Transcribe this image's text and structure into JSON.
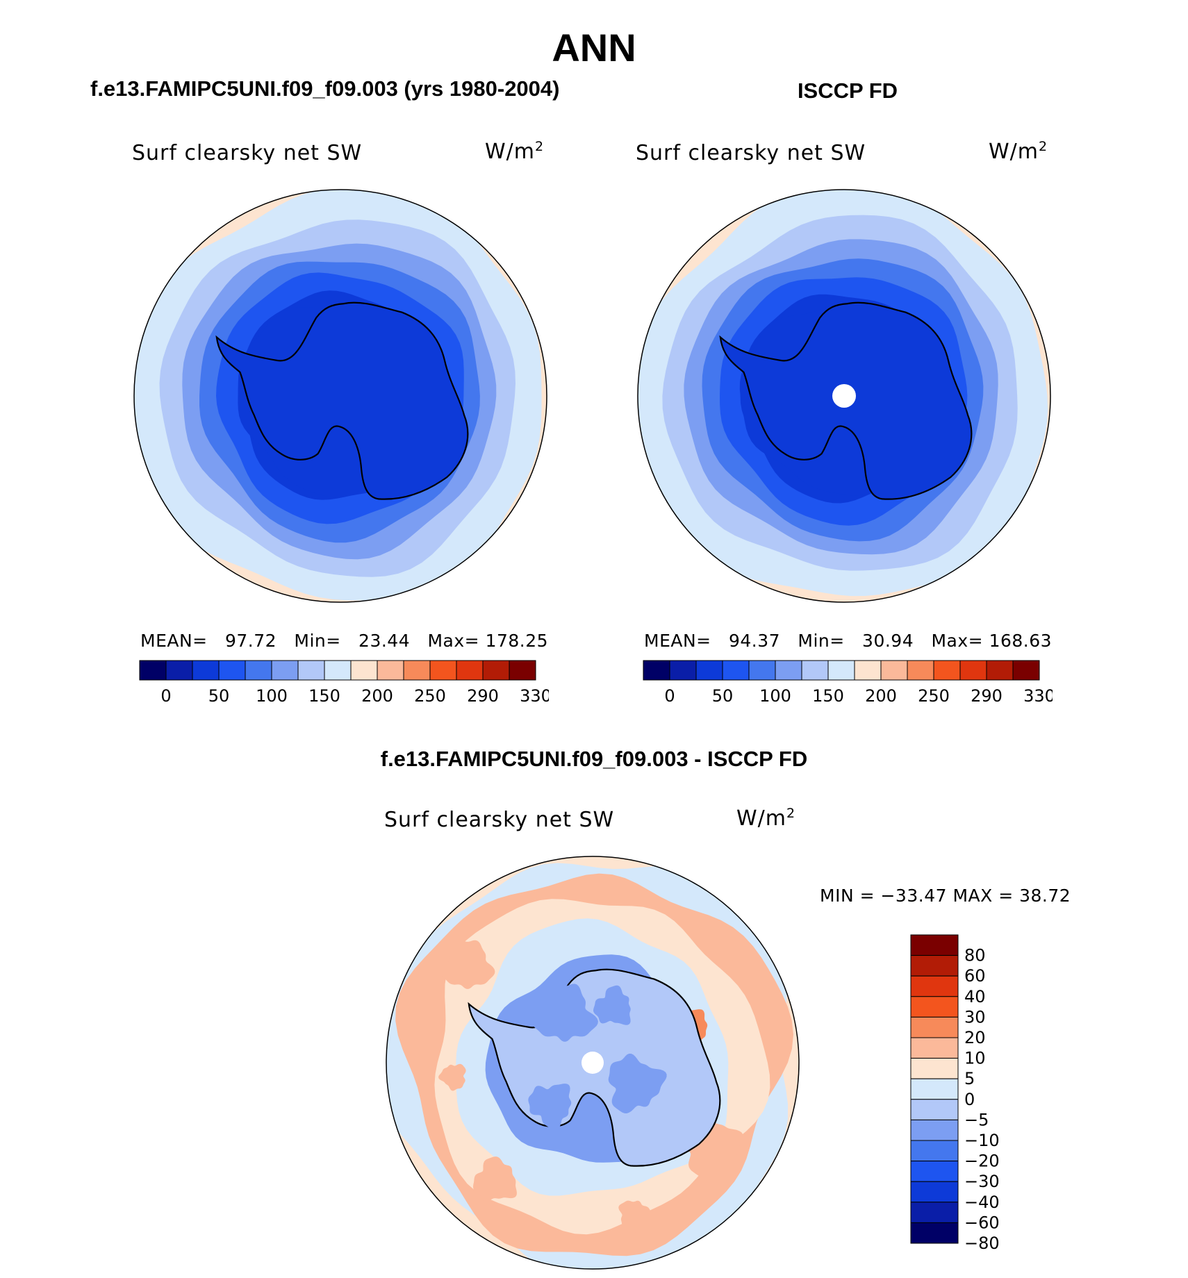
{
  "header": {
    "main_title": "ANN",
    "model_title": "f.e13.FAMIPC5UNI.f09_f09.003 (yrs 1980-2004)",
    "obs_title": "ISCCP FD",
    "diff_title": "f.e13.FAMIPC5UNI.f09_f09.003 - ISCCP FD"
  },
  "panels": {
    "model": {
      "var_label": "Surf clearsky net SW",
      "unit_base": "W/m",
      "unit_exp": "2",
      "mean_label": "MEAN=",
      "mean": "97.72",
      "min_label": "Min=",
      "min": "23.44",
      "max_label": "Max=",
      "max": "178.25"
    },
    "obs": {
      "var_label": "Surf clearsky net SW",
      "unit_base": "W/m",
      "unit_exp": "2",
      "mean_label": "MEAN=",
      "mean": "94.37",
      "min_label": "Min=",
      "min": "30.94",
      "max_label": "Max=",
      "max": "168.63"
    },
    "diff": {
      "var_label": "Surf clearsky net SW",
      "unit_base": "W/m",
      "unit_exp": "2",
      "minmax_text": "MIN = −33.47 MAX =   38.72"
    }
  },
  "colors": {
    "abs_scale": [
      "#000066",
      "#0a1ea8",
      "#0d3ad8",
      "#1e55f0",
      "#4477ee",
      "#7c9ef2",
      "#b2c8f8",
      "#d4e8fb",
      "#fde4d0",
      "#fbb99a",
      "#f78a5a",
      "#f3551e",
      "#e0360f",
      "#b21c06",
      "#7a0000"
    ],
    "diff_scale": [
      "#000066",
      "#0a1ea8",
      "#0d3ad8",
      "#1e55f0",
      "#4477ee",
      "#7c9ef2",
      "#b2c8f8",
      "#d4e8fb",
      "#fde4d0",
      "#fbb99a",
      "#f78a5a",
      "#f3551e",
      "#e0360f",
      "#b21c06",
      "#7a0000"
    ]
  },
  "chart_data": [
    {
      "type": "heatmap",
      "projection": "south-polar-stereographic",
      "title": "f.e13.FAMIPC5UNI.f09_f09.003 (yrs 1980-2004)",
      "variable": "Surf clearsky net SW",
      "units": "W/m2",
      "stats": {
        "mean": 97.72,
        "min": 23.44,
        "max": 178.25
      },
      "colorbar_ticks": [
        "0",
        "50",
        "100",
        "150",
        "200",
        "250",
        "290",
        "330"
      ],
      "radial_profile": {
        "colatitude_fraction": [
          0.0,
          0.5,
          0.6,
          0.68,
          0.76,
          0.86,
          1.0
        ],
        "value_class": [
          2,
          2,
          3,
          4,
          5,
          6,
          7
        ]
      }
    },
    {
      "type": "heatmap",
      "projection": "south-polar-stereographic",
      "title": "ISCCP FD",
      "variable": "Surf clearsky net SW",
      "units": "W/m2",
      "stats": {
        "mean": 94.37,
        "min": 30.94,
        "max": 168.63
      },
      "colorbar_ticks": [
        "0",
        "50",
        "100",
        "150",
        "200",
        "250",
        "290",
        "330"
      ],
      "radial_profile": {
        "colatitude_fraction": [
          0.0,
          0.5,
          0.6,
          0.68,
          0.76,
          0.86,
          1.0
        ],
        "value_class": [
          2,
          2,
          3,
          4,
          5,
          6,
          7
        ]
      }
    },
    {
      "type": "heatmap",
      "projection": "south-polar-stereographic",
      "title": "f.e13.FAMIPC5UNI.f09_f09.003 - ISCCP FD",
      "variable": "Surf clearsky net SW",
      "units": "W/m2",
      "stats": {
        "min": -33.47,
        "max": 38.72
      },
      "colorbar_ticks": [
        "80",
        "60",
        "40",
        "30",
        "20",
        "10",
        "5",
        "0",
        "−5",
        "−10",
        "−20",
        "−30",
        "−40",
        "−60",
        "−80"
      ],
      "radial_profile": {
        "colatitude_fraction": [
          0.0,
          0.5,
          0.66,
          0.8,
          0.92,
          1.0
        ],
        "value_class": [
          6,
          5,
          7,
          8,
          9,
          7
        ]
      }
    }
  ]
}
